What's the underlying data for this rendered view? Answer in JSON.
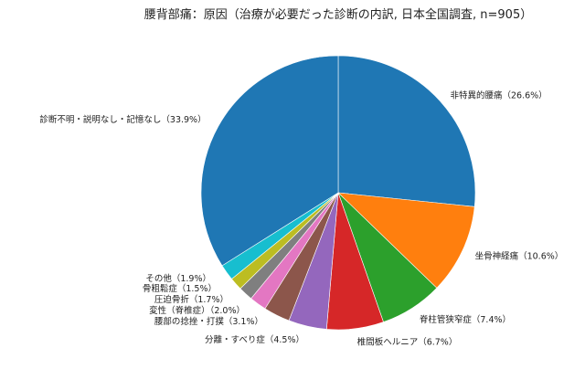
{
  "chart_data": {
    "type": "pie",
    "title": "腰背部痛：原因（治療が必要だった診断の内訳, 日本全国調査, n=905）",
    "start_angle": "top",
    "direction": "clockwise",
    "slices": [
      {
        "label": "非特異的腰痛（26.6%）",
        "value": 26.6,
        "color": "#1f77b4"
      },
      {
        "label": "坐骨神経痛（10.6%）",
        "value": 10.6,
        "color": "#ff7f0e"
      },
      {
        "label": "脊柱管狭窄症（7.4%）",
        "value": 7.4,
        "color": "#2ca02c"
      },
      {
        "label": "椎間板ヘルニア（6.7%）",
        "value": 6.7,
        "color": "#d62728"
      },
      {
        "label": "分離・すべり症（4.5%）",
        "value": 4.5,
        "color": "#9467bd"
      },
      {
        "label": "腰部の捻挫・打撲（3.1%）",
        "value": 3.1,
        "color": "#8c564b"
      },
      {
        "label": "変性（脊椎症）（2.0%）",
        "value": 2.0,
        "color": "#e377c2"
      },
      {
        "label": "圧迫骨折（1.7%）",
        "value": 1.7,
        "color": "#7f7f7f"
      },
      {
        "label": "骨粗鬆症（1.5%）",
        "value": 1.5,
        "color": "#bcbd22"
      },
      {
        "label": "その他（1.9%）",
        "value": 1.9,
        "color": "#17becf"
      },
      {
        "label": "診断不明・説明なし・記憶なし（33.9%）",
        "value": 33.9,
        "color": "#1f77b4"
      }
    ]
  }
}
